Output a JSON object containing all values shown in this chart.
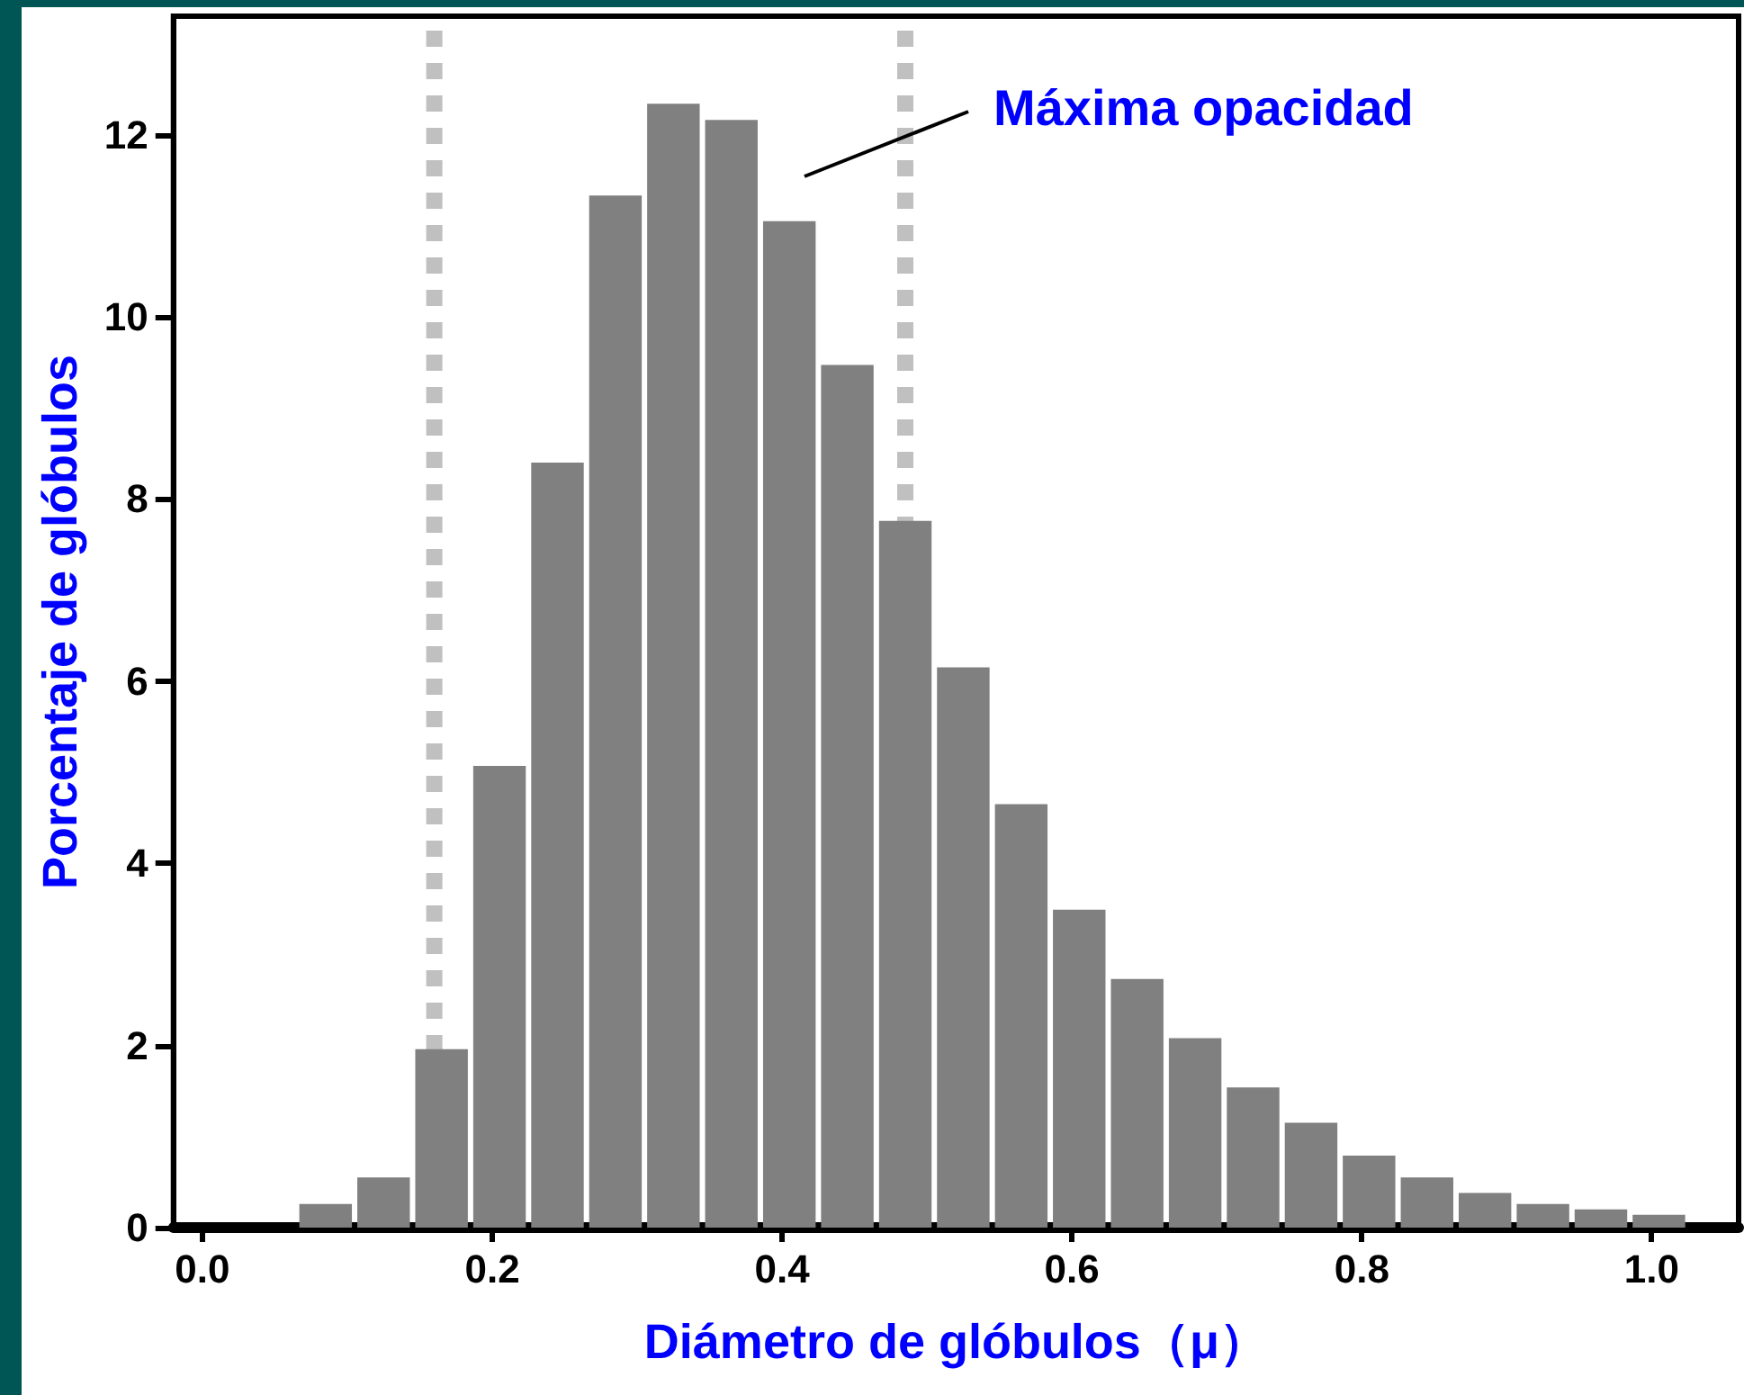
{
  "chart_data": {
    "type": "histogram",
    "xlabel": "Diámetro de glóbulos（μ）",
    "ylabel": "Porcentaje de glóbulos",
    "bins": [
      0.065,
      0.105,
      0.145,
      0.185,
      0.225,
      0.265,
      0.305,
      0.345,
      0.385,
      0.425,
      0.465,
      0.505,
      0.545,
      0.585,
      0.625,
      0.665,
      0.705,
      0.745,
      0.785,
      0.825,
      0.865,
      0.905,
      0.945,
      0.985,
      1.025
    ],
    "values": [
      0.26,
      0.55,
      1.96,
      5.07,
      8.4,
      11.33,
      12.34,
      12.16,
      11.05,
      9.47,
      7.76,
      6.15,
      4.65,
      3.49,
      2.73,
      2.08,
      1.54,
      1.15,
      0.79,
      0.55,
      0.38,
      0.26,
      0.2,
      0.14
    ],
    "color": "#808080",
    "xlim": [
      -0.02,
      1.06
    ],
    "ylim": [
      0,
      13.3
    ],
    "xticks": [
      {
        "value": 0,
        "label": "0.0"
      },
      {
        "value": 0.2,
        "label": "0.2"
      },
      {
        "value": 0.4,
        "label": "0.4"
      },
      {
        "value": 0.6,
        "label": "0.6"
      },
      {
        "value": 0.8,
        "label": "0.8"
      },
      {
        "value": 1,
        "label": "1.0"
      }
    ],
    "yticks": [
      0,
      2,
      4,
      6,
      8,
      10,
      12
    ],
    "ref_lines": [
      {
        "axis": "x",
        "value": 0.16,
        "color": "#c0c0c0",
        "line_style": "dotted"
      },
      {
        "axis": "x",
        "value": 0.485,
        "color": "#c0c0c0",
        "line_style": "dotted"
      }
    ],
    "annotations": [
      "Máxima opacidad"
    ]
  }
}
